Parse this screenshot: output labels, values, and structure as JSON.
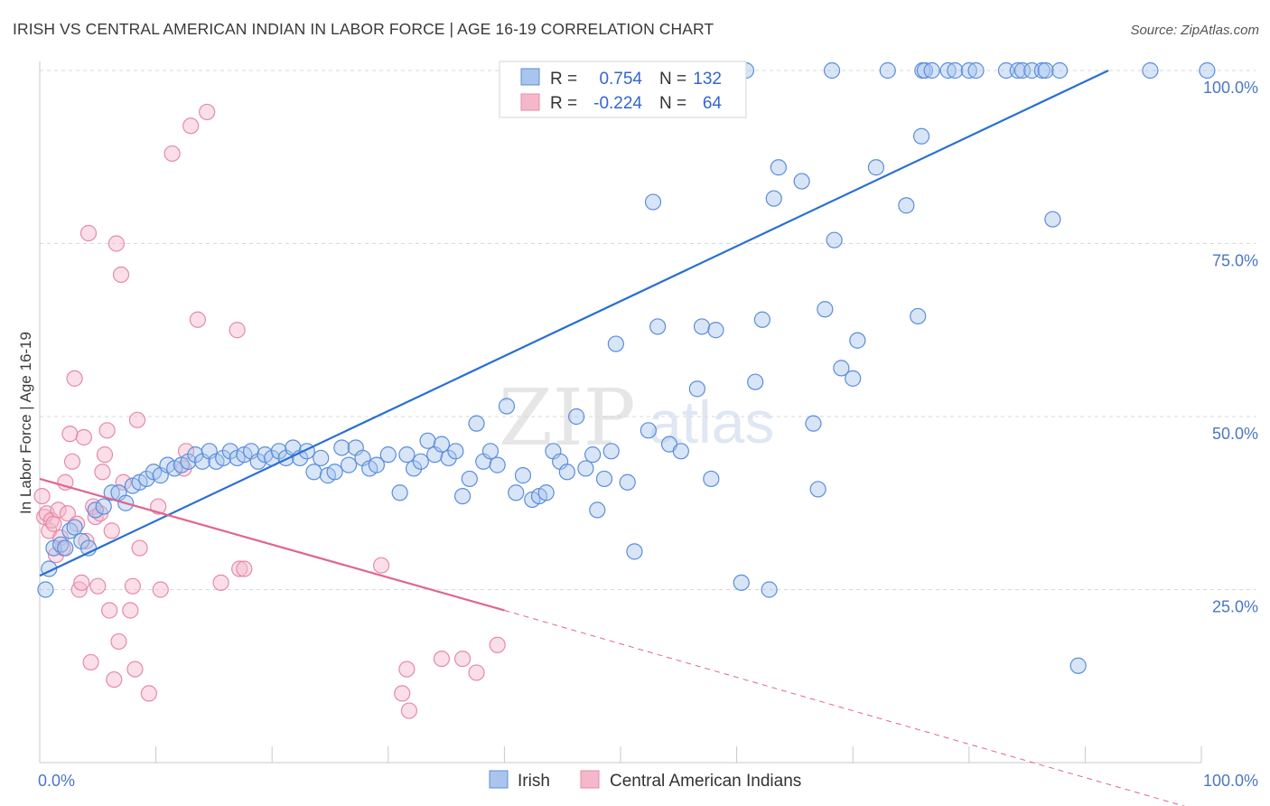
{
  "title": "IRISH VS CENTRAL AMERICAN INDIAN IN LABOR FORCE | AGE 16-19 CORRELATION CHART",
  "source": "Source: ZipAtlas.com",
  "watermark": {
    "zip": "ZIP",
    "atlas": "atlas"
  },
  "colors": {
    "irish_fill": "#a9c5ee",
    "irish_stroke": "#5b8ddb",
    "irish_line": "#2a6fd1",
    "cai_fill": "#f5b8cb",
    "cai_stroke": "#e68aa8",
    "cai_line": "#e06590",
    "tick_label": "#4a77c6",
    "grid": "#d8d8d8"
  },
  "legend": {
    "r_label": "R =",
    "n_label": "N =",
    "rows": [
      {
        "r": "0.754",
        "n": "132"
      },
      {
        "r": "-0.224",
        "n": "64"
      }
    ]
  },
  "chart_data": {
    "type": "scatter",
    "xlabel": "",
    "ylabel": "In Labor Force | Age 16-19",
    "xlim": [
      0,
      100
    ],
    "ylim": [
      0,
      100
    ],
    "x_tick_labels": [
      "0.0%",
      "100.0%"
    ],
    "y_ticks": [
      25,
      50,
      75,
      100
    ],
    "y_tick_labels": [
      "25.0%",
      "50.0%",
      "75.0%",
      "100.0%"
    ],
    "grid": true,
    "legend_position": "top-center",
    "series": [
      {
        "name": "Irish",
        "trend": {
          "x": [
            0,
            92
          ],
          "y": [
            27,
            100
          ]
        },
        "points": [
          [
            0.5,
            25
          ],
          [
            0.8,
            28
          ],
          [
            1.2,
            31
          ],
          [
            1.8,
            31.5
          ],
          [
            2.2,
            31
          ],
          [
            2.6,
            33.5
          ],
          [
            3.0,
            34
          ],
          [
            3.6,
            32
          ],
          [
            4.2,
            31
          ],
          [
            4.8,
            36.5
          ],
          [
            5.5,
            37
          ],
          [
            6.2,
            39
          ],
          [
            6.8,
            39
          ],
          [
            7.4,
            37.5
          ],
          [
            8,
            40
          ],
          [
            8.6,
            40.5
          ],
          [
            9.2,
            41
          ],
          [
            9.8,
            42
          ],
          [
            10.4,
            41.5
          ],
          [
            11,
            43
          ],
          [
            11.6,
            42.5
          ],
          [
            12.2,
            43
          ],
          [
            12.8,
            43.5
          ],
          [
            13.4,
            44.5
          ],
          [
            14,
            43.5
          ],
          [
            14.6,
            45
          ],
          [
            15.2,
            43.5
          ],
          [
            15.8,
            44
          ],
          [
            16.4,
            45
          ],
          [
            17,
            44
          ],
          [
            17.6,
            44.5
          ],
          [
            18.2,
            45
          ],
          [
            18.8,
            43.5
          ],
          [
            19.4,
            44.5
          ],
          [
            20,
            44
          ],
          [
            20.6,
            45
          ],
          [
            21.2,
            44
          ],
          [
            21.8,
            45.5
          ],
          [
            22.4,
            44
          ],
          [
            23,
            45
          ],
          [
            23.6,
            42
          ],
          [
            24.2,
            44
          ],
          [
            24.8,
            41.5
          ],
          [
            25.4,
            42
          ],
          [
            26,
            45.5
          ],
          [
            26.6,
            43
          ],
          [
            27.2,
            45.5
          ],
          [
            27.8,
            44
          ],
          [
            28.4,
            42.5
          ],
          [
            29,
            43
          ],
          [
            30,
            44.5
          ],
          [
            31,
            39
          ],
          [
            31.6,
            44.5
          ],
          [
            32.2,
            42.5
          ],
          [
            32.8,
            43.5
          ],
          [
            33.4,
            46.5
          ],
          [
            34,
            44.5
          ],
          [
            34.6,
            46
          ],
          [
            35.2,
            44
          ],
          [
            35.8,
            45
          ],
          [
            36.4,
            38.5
          ],
          [
            37,
            41
          ],
          [
            37.6,
            49
          ],
          [
            38.2,
            43.5
          ],
          [
            38.8,
            45
          ],
          [
            39.4,
            43
          ],
          [
            40.2,
            51.5
          ],
          [
            41,
            39
          ],
          [
            41.6,
            41.5
          ],
          [
            42.4,
            38
          ],
          [
            43,
            38.5
          ],
          [
            43.6,
            39
          ],
          [
            44.2,
            45
          ],
          [
            44.8,
            43.5
          ],
          [
            45.4,
            42
          ],
          [
            46.2,
            50
          ],
          [
            47,
            42.5
          ],
          [
            47.6,
            44.5
          ],
          [
            48,
            36.5
          ],
          [
            48.6,
            41
          ],
          [
            49.2,
            45
          ],
          [
            49.6,
            60.5
          ],
          [
            50.6,
            40.5
          ],
          [
            51.2,
            30.5
          ],
          [
            52.4,
            48
          ],
          [
            52.8,
            81
          ],
          [
            53.2,
            63
          ],
          [
            54.2,
            46
          ],
          [
            55.2,
            45
          ],
          [
            55.6,
            94.5
          ],
          [
            56.6,
            54
          ],
          [
            57,
            63
          ],
          [
            57.8,
            41
          ],
          [
            58.2,
            62.5
          ],
          [
            59.4,
            100
          ],
          [
            60.4,
            26
          ],
          [
            60.8,
            100
          ],
          [
            61.6,
            55
          ],
          [
            62.2,
            64
          ],
          [
            62.8,
            25
          ],
          [
            63.2,
            81.5
          ],
          [
            63.6,
            86
          ],
          [
            65.6,
            84
          ],
          [
            66.6,
            49
          ],
          [
            67,
            39.5
          ],
          [
            67.6,
            65.5
          ],
          [
            68.2,
            100
          ],
          [
            68.4,
            75.5
          ],
          [
            69,
            57
          ],
          [
            70,
            55.5
          ],
          [
            70.4,
            61
          ],
          [
            72,
            86
          ],
          [
            73,
            100
          ],
          [
            74.6,
            80.5
          ],
          [
            75.6,
            64.5
          ],
          [
            75.9,
            90.5
          ],
          [
            76,
            100
          ],
          [
            76.2,
            100
          ],
          [
            76.8,
            100
          ],
          [
            78.2,
            100
          ],
          [
            78.8,
            100
          ],
          [
            80,
            100
          ],
          [
            80.6,
            100
          ],
          [
            83.2,
            100
          ],
          [
            84.2,
            100
          ],
          [
            84.6,
            100
          ],
          [
            85.4,
            100
          ],
          [
            86.3,
            100
          ],
          [
            86.6,
            100
          ],
          [
            87.2,
            78.5
          ],
          [
            87.8,
            100
          ],
          [
            95.6,
            100
          ],
          [
            100.5,
            100
          ],
          [
            89.4,
            14
          ]
        ]
      },
      {
        "name": "Central American Indians",
        "trend": {
          "x": [
            0,
            40
          ],
          "y": [
            41,
            22
          ]
        },
        "trend_dashed": {
          "x": [
            40,
            100
          ],
          "y": [
            22,
            -7
          ]
        },
        "points": [
          [
            0.2,
            38.5
          ],
          [
            0.4,
            35.5
          ],
          [
            0.6,
            36
          ],
          [
            0.8,
            33.5
          ],
          [
            1.0,
            35
          ],
          [
            1.2,
            34.5
          ],
          [
            1.4,
            30
          ],
          [
            1.6,
            36.5
          ],
          [
            1.8,
            32.5
          ],
          [
            2.0,
            31
          ],
          [
            2.2,
            40.5
          ],
          [
            2.4,
            36
          ],
          [
            2.6,
            47.5
          ],
          [
            2.8,
            43.5
          ],
          [
            3.0,
            55.5
          ],
          [
            3.2,
            34.5
          ],
          [
            3.4,
            25
          ],
          [
            3.6,
            26
          ],
          [
            3.8,
            47
          ],
          [
            4.0,
            32
          ],
          [
            4.2,
            76.5
          ],
          [
            4.4,
            14.5
          ],
          [
            4.6,
            37
          ],
          [
            4.8,
            35.5
          ],
          [
            5.0,
            25.5
          ],
          [
            5.2,
            36
          ],
          [
            5.4,
            42
          ],
          [
            5.6,
            44.5
          ],
          [
            5.8,
            48
          ],
          [
            6.0,
            22
          ],
          [
            6.2,
            33.5
          ],
          [
            6.4,
            12
          ],
          [
            6.6,
            75
          ],
          [
            6.8,
            17.5
          ],
          [
            7.0,
            70.5
          ],
          [
            7.2,
            40.5
          ],
          [
            7.8,
            22
          ],
          [
            8.0,
            25.5
          ],
          [
            8.2,
            13.5
          ],
          [
            8.4,
            49.5
          ],
          [
            8.6,
            31
          ],
          [
            9.4,
            10
          ],
          [
            10.2,
            37
          ],
          [
            10.4,
            25
          ],
          [
            11.4,
            88
          ],
          [
            12.4,
            42.5
          ],
          [
            12.6,
            45
          ],
          [
            13,
            92
          ],
          [
            13.6,
            64
          ],
          [
            14.4,
            94
          ],
          [
            15.6,
            26
          ],
          [
            17,
            62.5
          ],
          [
            17.2,
            28
          ],
          [
            17.6,
            28
          ],
          [
            29.4,
            28.5
          ],
          [
            31.2,
            10
          ],
          [
            31.6,
            13.5
          ],
          [
            31.8,
            7.5
          ],
          [
            34.6,
            15
          ],
          [
            36.4,
            15
          ],
          [
            37.6,
            13
          ],
          [
            39.4,
            17
          ]
        ]
      }
    ]
  },
  "bottom_legend": [
    {
      "label": "Irish"
    },
    {
      "label": "Central American Indians"
    }
  ]
}
